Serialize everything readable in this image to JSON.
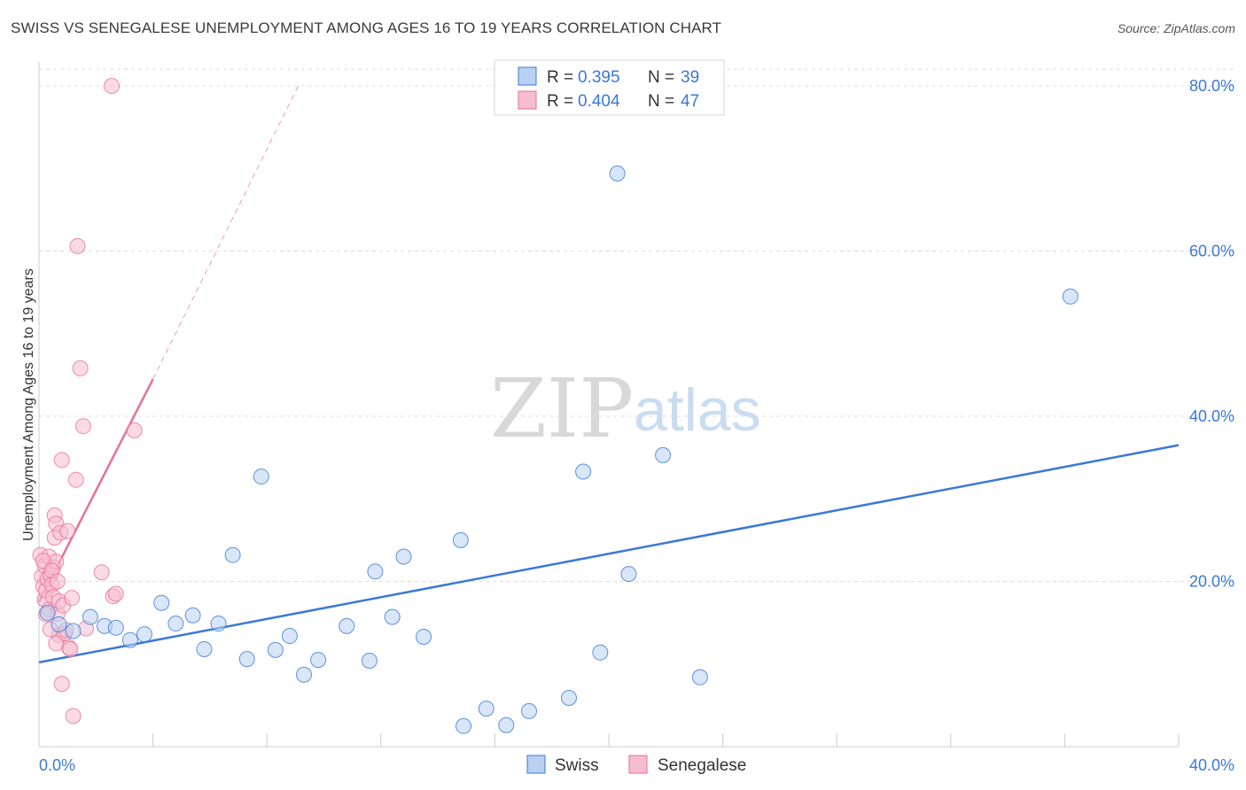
{
  "title": "SWISS VS SENEGALESE UNEMPLOYMENT AMONG AGES 16 TO 19 YEARS CORRELATION CHART",
  "source": "Source: ZipAtlas.com",
  "watermark": {
    "zip": "ZIP",
    "atlas": "atlas"
  },
  "colors": {
    "swiss": "#3b78d8",
    "swiss_fill": "#b8d1f3",
    "senegalese": "#e8709a",
    "senegalese_fill": "#f6bdd0",
    "grid": "#dddddd",
    "tick_text": "#3b78d8"
  },
  "legend": {
    "swiss": {
      "r_label": "R =",
      "r_value": "0.395",
      "n_label": "N =",
      "n_value": "39"
    },
    "senegalese": {
      "r_label": "R =",
      "r_value": "0.404",
      "n_label": "N =",
      "n_value": "47"
    }
  },
  "bottom_legend": {
    "swiss": "Swiss",
    "senegalese": "Senegalese"
  },
  "chart_data": {
    "type": "scatter",
    "title": "SWISS VS SENEGALESE UNEMPLOYMENT AMONG AGES 16 TO 19 YEARS CORRELATION CHART",
    "xlabel": "",
    "ylabel": "Unemployment Among Ages 16 to 19 years",
    "xlim": [
      0,
      40
    ],
    "ylim": [
      0,
      82
    ],
    "x_tick_labels": [
      "0.0%",
      "40.0%"
    ],
    "y_ticks": [
      20,
      40,
      60,
      80
    ],
    "y_tick_labels": [
      "20.0%",
      "40.0%",
      "60.0%",
      "80.0%"
    ],
    "series": [
      {
        "name": "Swiss",
        "trend": {
          "x0": 0,
          "y0": 10.2,
          "x1": 40,
          "y1": 36.5
        },
        "points": [
          [
            0.3,
            16.2
          ],
          [
            0.7,
            14.8
          ],
          [
            1.2,
            14.0
          ],
          [
            1.8,
            15.7
          ],
          [
            2.3,
            14.6
          ],
          [
            2.7,
            14.4
          ],
          [
            3.2,
            12.9
          ],
          [
            3.7,
            13.6
          ],
          [
            4.3,
            17.4
          ],
          [
            4.8,
            14.9
          ],
          [
            5.4,
            15.9
          ],
          [
            5.8,
            11.8
          ],
          [
            6.3,
            14.9
          ],
          [
            6.8,
            23.2
          ],
          [
            7.3,
            10.6
          ],
          [
            7.8,
            32.7
          ],
          [
            8.3,
            11.7
          ],
          [
            8.8,
            13.4
          ],
          [
            9.3,
            8.7
          ],
          [
            9.8,
            10.5
          ],
          [
            10.8,
            14.6
          ],
          [
            11.8,
            21.2
          ],
          [
            11.6,
            10.4
          ],
          [
            12.4,
            15.7
          ],
          [
            12.8,
            23.0
          ],
          [
            13.5,
            13.3
          ],
          [
            14.8,
            25.0
          ],
          [
            14.9,
            2.5
          ],
          [
            15.7,
            4.6
          ],
          [
            16.4,
            2.6
          ],
          [
            17.2,
            4.3
          ],
          [
            18.6,
            5.9
          ],
          [
            19.1,
            33.3
          ],
          [
            19.7,
            11.4
          ],
          [
            20.3,
            69.4
          ],
          [
            20.7,
            20.9
          ],
          [
            21.9,
            35.3
          ],
          [
            23.2,
            8.4
          ],
          [
            36.2,
            54.5
          ]
        ]
      },
      {
        "name": "Senegalese",
        "trend": {
          "x0": 0,
          "y0": 17.5,
          "x1": 4.0,
          "y1": 44.5
        },
        "trend_extension": {
          "x0": 4.0,
          "y0": 44.5,
          "x1": 9.1,
          "y1": 80.0
        },
        "points": [
          [
            0.05,
            23.2
          ],
          [
            0.1,
            20.6
          ],
          [
            0.15,
            19.4
          ],
          [
            0.2,
            21.9
          ],
          [
            0.2,
            17.8
          ],
          [
            0.25,
            18.9
          ],
          [
            0.3,
            20.3
          ],
          [
            0.35,
            16.6
          ],
          [
            0.35,
            23.0
          ],
          [
            0.4,
            20.8
          ],
          [
            0.45,
            19.6
          ],
          [
            0.5,
            18.1
          ],
          [
            0.5,
            21.7
          ],
          [
            0.55,
            25.3
          ],
          [
            0.55,
            28.0
          ],
          [
            0.6,
            27.0
          ],
          [
            0.6,
            22.4
          ],
          [
            0.65,
            16.1
          ],
          [
            0.7,
            17.6
          ],
          [
            0.7,
            13.5
          ],
          [
            0.75,
            25.9
          ],
          [
            0.8,
            34.7
          ],
          [
            0.8,
            7.6
          ],
          [
            0.85,
            17.1
          ],
          [
            0.9,
            13.7
          ],
          [
            0.95,
            14.1
          ],
          [
            1.0,
            26.1
          ],
          [
            1.05,
            12.0
          ],
          [
            1.1,
            11.8
          ],
          [
            1.15,
            18.0
          ],
          [
            1.2,
            3.7
          ],
          [
            1.3,
            32.3
          ],
          [
            1.35,
            60.6
          ],
          [
            1.45,
            45.8
          ],
          [
            1.55,
            38.8
          ],
          [
            1.65,
            14.3
          ],
          [
            2.2,
            21.1
          ],
          [
            2.6,
            18.2
          ],
          [
            2.7,
            18.5
          ],
          [
            2.55,
            80.0
          ],
          [
            3.35,
            38.3
          ],
          [
            0.6,
            12.5
          ],
          [
            0.4,
            14.2
          ],
          [
            0.25,
            16.0
          ],
          [
            0.15,
            22.5
          ],
          [
            0.45,
            21.3
          ],
          [
            0.65,
            20.0
          ]
        ]
      }
    ],
    "legend_position": "top-center"
  }
}
